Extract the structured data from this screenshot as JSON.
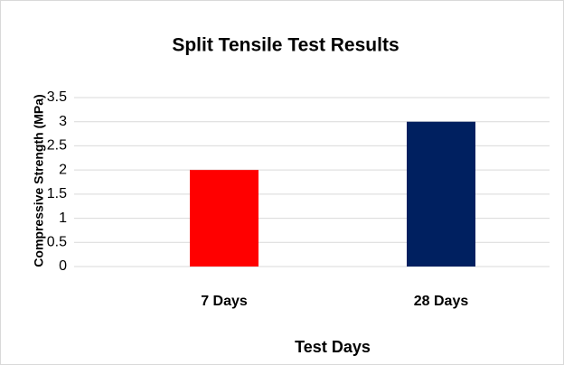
{
  "chart_data": {
    "type": "bar",
    "title": "Split Tensile Test Results",
    "x_label": "Test Days",
    "y_label": "Compressive Strength (MPa)",
    "categories": [
      "7 Days",
      "28 Days"
    ],
    "values": [
      2,
      3
    ],
    "colors": [
      "#ff0000",
      "#002060"
    ],
    "ylim": [
      0,
      3.5
    ],
    "yticks": [
      0,
      0.5,
      1,
      1.5,
      2,
      2.5,
      3,
      3.5
    ],
    "grid": true
  }
}
